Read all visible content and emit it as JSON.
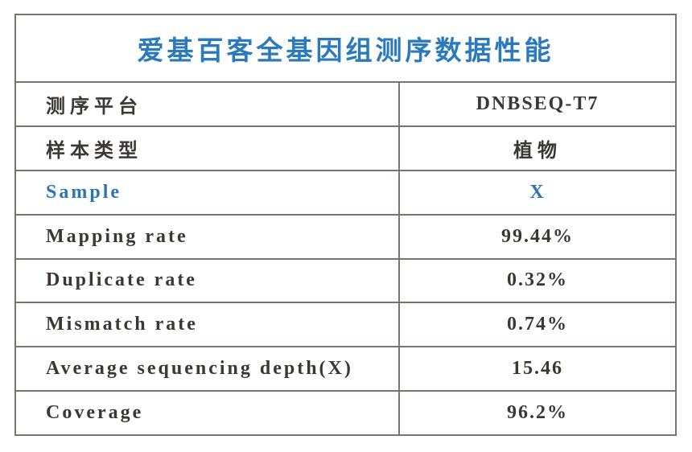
{
  "title": "爱基百客全基因组测序数据性能",
  "colors": {
    "title_blue": "#2b7abd",
    "highlight_blue": "#2e74b0",
    "text_dark": "#3b3734",
    "border_gray": "#7c7370"
  },
  "table": {
    "rows": [
      {
        "label": "测序平台",
        "value": "DNBSEQ-T7",
        "highlight": false
      },
      {
        "label": "样本类型",
        "value": "植物",
        "highlight": false
      },
      {
        "label": "Sample",
        "value": "X",
        "highlight": true
      },
      {
        "label": "Mapping rate",
        "value": "99.44%",
        "highlight": false
      },
      {
        "label": "Duplicate rate",
        "value": "0.32%",
        "highlight": false
      },
      {
        "label": "Mismatch rate",
        "value": "0.74%",
        "highlight": false
      },
      {
        "label": "Average sequencing depth(X)",
        "value": "15.46",
        "highlight": false
      },
      {
        "label": "Coverage",
        "value": "96.2%",
        "highlight": false
      }
    ]
  }
}
